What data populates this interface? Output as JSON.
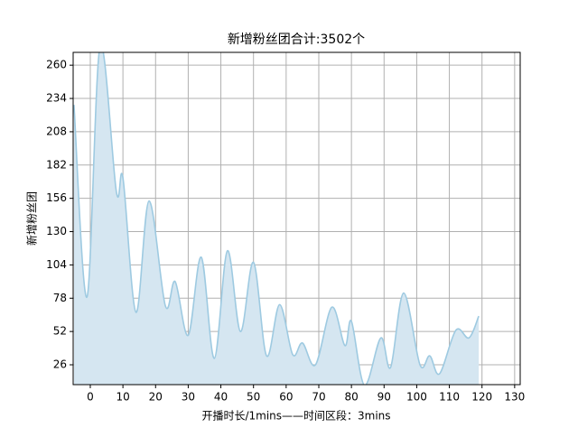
{
  "chart_data": {
    "type": "area",
    "title": "新增粉丝团合计:3502个",
    "x_label": "开播时长/1mins——时间区段：3mins",
    "y_label": "新增粉丝团",
    "series": [
      {
        "name": "新增粉丝团",
        "color": "#9ecae1",
        "fill": "#d5e6f1",
        "x": [
          -5,
          -1,
          3,
          8,
          10,
          14,
          18,
          23,
          26,
          30,
          34,
          38,
          42,
          46,
          50,
          54,
          58,
          62,
          65,
          69,
          74,
          78,
          80,
          84,
          89,
          92,
          96,
          101,
          104,
          107,
          112,
          116,
          119
        ],
        "values": [
          229,
          79,
          275,
          161,
          172,
          67,
          154,
          72,
          91,
          49,
          110,
          31,
          115,
          52,
          106,
          33,
          73,
          34,
          43,
          26,
          71,
          41,
          60,
          10,
          47,
          24,
          82,
          26,
          33,
          19,
          53,
          47,
          64
        ]
      }
    ],
    "xlim": [
      -5.25,
      131.7
    ],
    "ylim": [
      10.5,
      270
    ],
    "xticks": [
      0,
      10,
      20,
      30,
      40,
      50,
      60,
      70,
      80,
      90,
      100,
      110,
      120,
      130
    ],
    "yticks": [
      26,
      52,
      78,
      104,
      130,
      156,
      182,
      208,
      234,
      260
    ],
    "grid": true
  }
}
